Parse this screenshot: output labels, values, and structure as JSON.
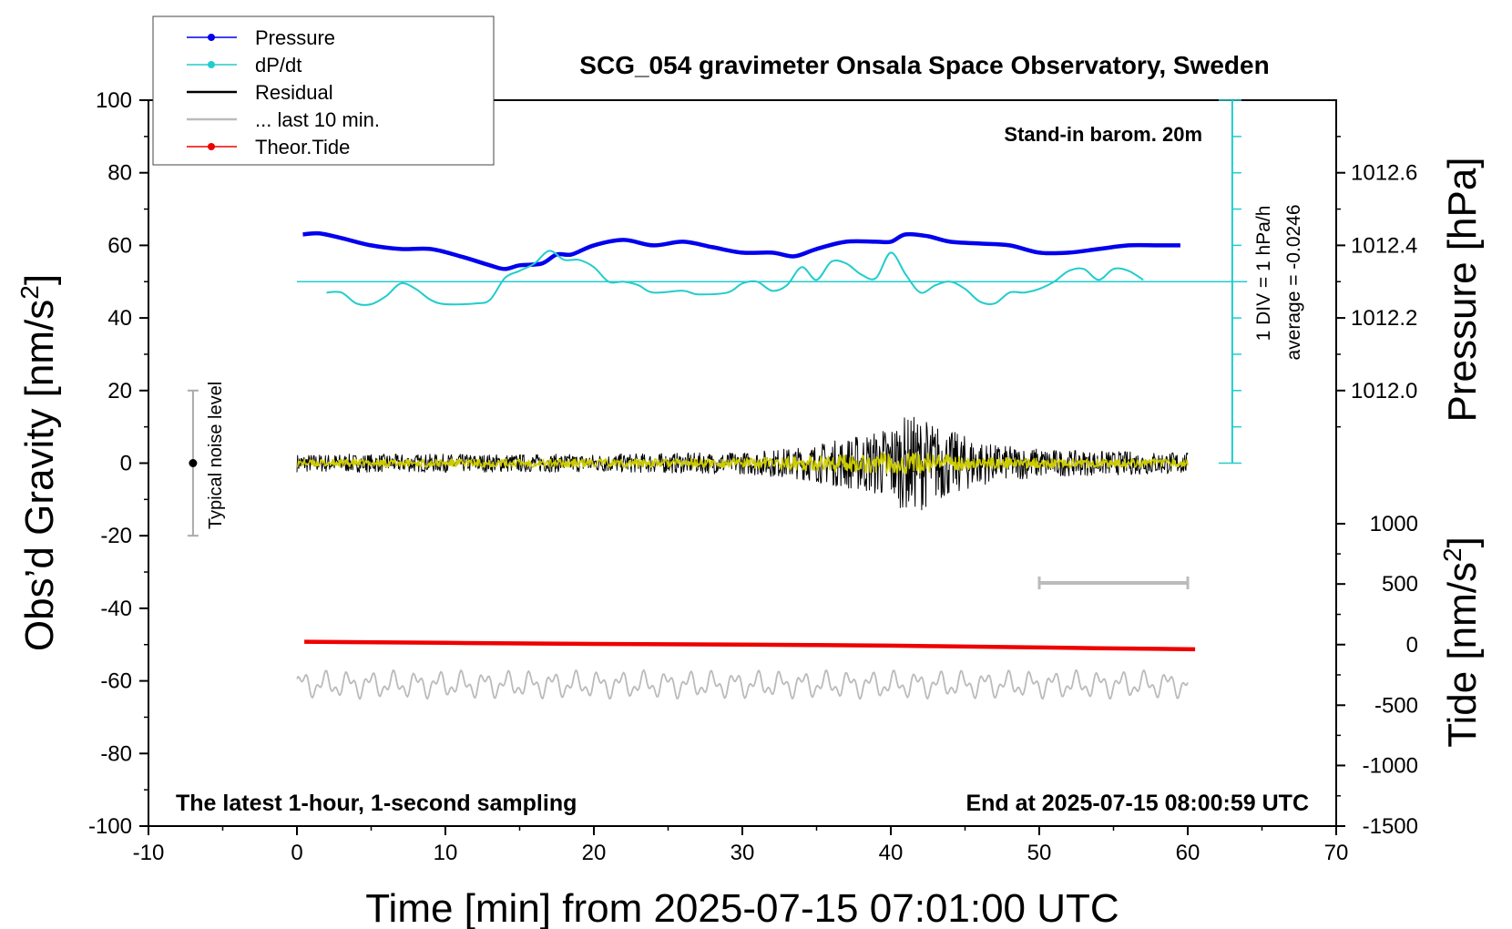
{
  "chart_data": {
    "type": "line",
    "title": "SCG_054 gravimeter Onsala Space Observatory, Sweden",
    "xlabel": "Time [min] from 2025-07-15 07:01:00 UTC",
    "ylabel_left": "Obs’d Gravity [nm/s",
    "ylabel_left_sup": "2",
    "ylabel_left_close": "]",
    "ylabel_pressure": "Pressure [hPa]",
    "ylabel_tide": "Tide [nm/s",
    "ylabel_tide_sup": "2",
    "ylabel_tide_close": "]",
    "xlim": [
      -10,
      70
    ],
    "ylim": [
      -100,
      100
    ],
    "x_ticks": [
      -10,
      0,
      10,
      20,
      30,
      40,
      50,
      60,
      70
    ],
    "x_tick_labels": [
      "-10",
      "0",
      "10",
      "20",
      "30",
      "40",
      "50",
      "60",
      "70"
    ],
    "y_ticks": [
      100,
      80,
      60,
      40,
      20,
      0,
      -20,
      -40,
      -60,
      -80,
      -100
    ],
    "y_tick_labels": [
      "100",
      "80",
      "60",
      "40",
      "20",
      "0",
      "-20",
      "-40",
      "-60",
      "-80",
      "-100"
    ],
    "pressure_axis": {
      "ticks": [
        1012.6,
        1012.4,
        1012.2,
        1012.0
      ],
      "tick_labels": [
        "1012.6",
        "1012.4",
        "1012.2",
        "1012.0"
      ],
      "gravity_equiv": [
        80,
        60,
        40,
        20
      ]
    },
    "tide_axis": {
      "ticks": [
        1000,
        500,
        0,
        -500,
        -1000,
        -1500
      ],
      "tick_labels": [
        "1000",
        "500",
        "0",
        "-500",
        "-1000",
        "-1500"
      ],
      "gravity_equiv": [
        -16.7,
        -33.3,
        -50,
        -66.7,
        -83.3,
        -100
      ]
    },
    "legend": [
      {
        "label": "Pressure",
        "color": "#0000ee",
        "marker": true
      },
      {
        "label": "dP/dt",
        "color": "#22cccc",
        "marker": true
      },
      {
        "label": "Residual",
        "color": "#000000",
        "marker": false
      },
      {
        "label": "... last 10 min.",
        "color": "#bbbbbb",
        "marker": false
      },
      {
        "label": "Theor.Tide",
        "color": "#ee0000",
        "marker": true
      }
    ],
    "annotations": {
      "barometer": "Stand-in barom. 20m",
      "div_label": "1 DIV = 1 hPa/h",
      "average_label": "average = -0.0246",
      "noise_label": "Typical noise level",
      "bottom_left": "The latest 1-hour, 1-second sampling",
      "bottom_right": "End at 2025-07-15 08:00:59 UTC"
    },
    "noise_bar": {
      "x": -7,
      "y_center": 0,
      "y_min": -20,
      "y_max": 20
    },
    "scale_bar": {
      "x_start": 50,
      "x_end": 60,
      "y": -33
    },
    "div_scale": {
      "x": 63,
      "y_min": 0,
      "y_max": 100,
      "tick_every": 10
    },
    "series": [
      {
        "name": "Pressure",
        "color": "#0000ee",
        "points": [
          [
            0.4,
            63
          ],
          [
            1.5,
            63.3
          ],
          [
            3,
            62
          ],
          [
            5,
            60
          ],
          [
            7,
            59
          ],
          [
            9,
            59
          ],
          [
            11,
            57
          ],
          [
            13,
            54.5
          ],
          [
            14,
            53.5
          ],
          [
            15,
            54.5
          ],
          [
            16.5,
            55
          ],
          [
            17.5,
            57.5
          ],
          [
            18.5,
            57.5
          ],
          [
            20,
            60
          ],
          [
            22,
            61.5
          ],
          [
            24,
            60
          ],
          [
            26,
            61
          ],
          [
            28,
            59.5
          ],
          [
            30,
            58
          ],
          [
            32,
            58
          ],
          [
            33.5,
            57
          ],
          [
            35,
            59
          ],
          [
            37,
            61
          ],
          [
            39,
            61
          ],
          [
            40,
            61
          ],
          [
            41,
            63
          ],
          [
            42.5,
            62.5
          ],
          [
            44,
            61
          ],
          [
            46,
            60.5
          ],
          [
            48,
            60
          ],
          [
            50,
            58
          ],
          [
            52,
            58
          ],
          [
            54,
            59
          ],
          [
            56,
            60
          ],
          [
            58,
            60
          ],
          [
            59.5,
            60
          ]
        ]
      },
      {
        "name": "dP/dt",
        "color": "#22cccc",
        "points": [
          [
            2,
            47
          ],
          [
            3,
            47
          ],
          [
            4,
            44
          ],
          [
            5,
            43.8
          ],
          [
            6,
            46
          ],
          [
            7,
            49.5
          ],
          [
            8,
            48
          ],
          [
            9,
            45
          ],
          [
            10,
            43.8
          ],
          [
            12,
            44
          ],
          [
            13,
            45
          ],
          [
            14,
            51
          ],
          [
            15,
            53
          ],
          [
            16,
            55
          ],
          [
            17,
            58.5
          ],
          [
            18,
            56
          ],
          [
            19,
            56
          ],
          [
            20,
            54
          ],
          [
            21,
            50
          ],
          [
            22,
            50
          ],
          [
            23,
            49
          ],
          [
            24,
            47
          ],
          [
            26,
            47.5
          ],
          [
            27,
            46.5
          ],
          [
            29,
            47
          ],
          [
            30,
            49.5
          ],
          [
            31,
            50
          ],
          [
            32,
            47.5
          ],
          [
            33,
            49
          ],
          [
            34,
            54
          ],
          [
            35,
            50.5
          ],
          [
            36,
            55.5
          ],
          [
            37,
            55
          ],
          [
            38,
            52
          ],
          [
            39,
            51
          ],
          [
            40,
            58
          ],
          [
            41,
            52
          ],
          [
            42,
            47
          ],
          [
            43,
            49
          ],
          [
            44,
            50
          ],
          [
            45,
            48
          ],
          [
            46,
            44.5
          ],
          [
            47,
            44
          ],
          [
            48,
            47
          ],
          [
            49,
            47
          ],
          [
            50,
            48
          ],
          [
            51,
            50
          ],
          [
            52,
            53
          ],
          [
            53,
            53.5
          ],
          [
            54,
            50.5
          ],
          [
            55,
            53.5
          ],
          [
            56,
            53
          ],
          [
            57,
            50.5
          ]
        ]
      },
      {
        "name": "dP/dt average",
        "color": "#22cccc",
        "points": [
          [
            0,
            50
          ],
          [
            64,
            50
          ]
        ]
      },
      {
        "name": "Residual",
        "color": "#000000",
        "x_range": [
          0,
          60
        ],
        "y_center": 0,
        "envelope": [
          [
            0,
            2.5
          ],
          [
            10,
            2.5
          ],
          [
            20,
            2.5
          ],
          [
            30,
            3
          ],
          [
            34,
            4.5
          ],
          [
            37,
            7
          ],
          [
            39,
            9
          ],
          [
            41,
            13
          ],
          [
            42,
            13
          ],
          [
            44,
            9
          ],
          [
            47,
            5
          ],
          [
            52,
            3.5
          ],
          [
            60,
            3
          ]
        ]
      },
      {
        "name": "Residual smoothed",
        "color": "#cccc00",
        "x_range": [
          0,
          60
        ],
        "y_center": 0,
        "envelope": [
          [
            0,
            1
          ],
          [
            30,
            1.3
          ],
          [
            40,
            3
          ],
          [
            42,
            3
          ],
          [
            46,
            1.5
          ],
          [
            60,
            1
          ]
        ]
      },
      {
        "name": "Theor.Tide",
        "color": "#ee0000",
        "points": [
          [
            0.5,
            -49.2
          ],
          [
            10,
            -49.5
          ],
          [
            20,
            -49.8
          ],
          [
            30,
            -50
          ],
          [
            40,
            -50.3
          ],
          [
            50,
            -50.8
          ],
          [
            60.5,
            -51.3
          ]
        ]
      },
      {
        "name": "... last 10 min.",
        "color": "#bbbbbb",
        "x_range": [
          0,
          60
        ],
        "y_center": -61,
        "envelope": [
          [
            0,
            4
          ],
          [
            60,
            4
          ]
        ]
      }
    ]
  }
}
